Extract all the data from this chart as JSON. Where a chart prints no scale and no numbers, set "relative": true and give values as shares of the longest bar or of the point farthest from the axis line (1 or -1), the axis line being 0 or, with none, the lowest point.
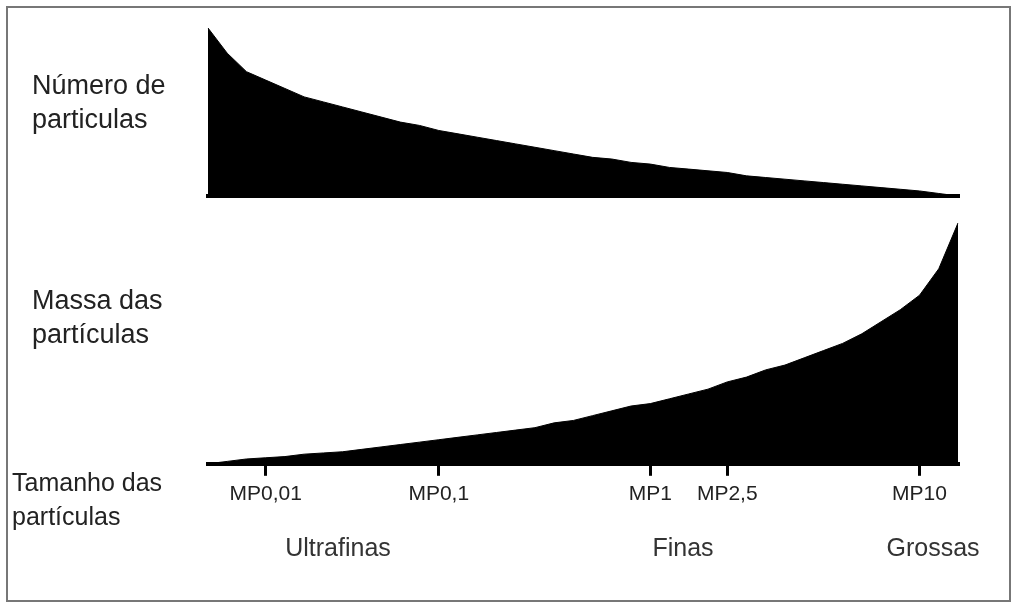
{
  "chart_data": [
    {
      "type": "area",
      "ylabel": "Número de particulas",
      "relative": true,
      "tick_labels": false,
      "grid": false,
      "legend": false,
      "marker": "none",
      "categories": [
        null,
        null,
        null,
        null,
        null,
        null,
        null,
        null,
        null,
        null,
        null,
        null,
        null,
        null,
        null,
        null,
        null,
        null,
        null,
        null,
        null,
        null,
        null,
        null,
        null,
        null,
        null,
        null,
        null,
        null,
        null,
        null,
        null,
        null,
        null,
        null,
        null,
        null,
        null,
        null
      ],
      "series": [
        {
          "color": "#000000",
          "values": [
            1,
            0.85,
            0.74,
            0.69,
            0.64,
            0.59,
            0.56,
            0.53,
            0.5,
            0.47,
            0.44,
            0.42,
            0.39,
            0.37,
            0.35,
            0.33,
            0.31,
            0.29,
            0.27,
            0.25,
            0.23,
            0.22,
            0.2,
            0.19,
            0.17,
            0.16,
            0.15,
            0.14,
            0.12,
            0.11,
            0.1,
            0.09,
            0.08,
            0.07,
            0.06,
            0.05,
            0.04,
            0.03,
            0.015,
            0
          ]
        }
      ]
    },
    {
      "type": "area",
      "ylabel": "Massa das partículas",
      "xlabel": "Tamanho das partículas",
      "relative": true,
      "tick_labels": "x",
      "grid": false,
      "legend": false,
      "marker": "none",
      "categories": [
        null,
        null,
        null,
        "MP0,01",
        null,
        null,
        null,
        null,
        null,
        null,
        null,
        null,
        "MP0,1",
        null,
        null,
        null,
        null,
        null,
        null,
        null,
        null,
        null,
        null,
        "MP1",
        null,
        null,
        null,
        "MP2,5",
        null,
        null,
        null,
        null,
        null,
        null,
        null,
        null,
        null,
        "MP10",
        null,
        null
      ],
      "series": [
        {
          "color": "#000000",
          "values": [
            0,
            0.01,
            0.02,
            0.025,
            0.03,
            0.04,
            0.045,
            0.05,
            0.06,
            0.07,
            0.08,
            0.09,
            0.1,
            0.11,
            0.12,
            0.13,
            0.14,
            0.15,
            0.17,
            0.18,
            0.2,
            0.22,
            0.24,
            0.25,
            0.27,
            0.29,
            0.31,
            0.34,
            0.36,
            0.39,
            0.41,
            0.44,
            0.47,
            0.5,
            0.54,
            0.59,
            0.64,
            0.7,
            0.81,
            1
          ]
        }
      ],
      "annotations": [
        "Ultrafinas",
        "Finas",
        "Grossas"
      ]
    }
  ]
}
